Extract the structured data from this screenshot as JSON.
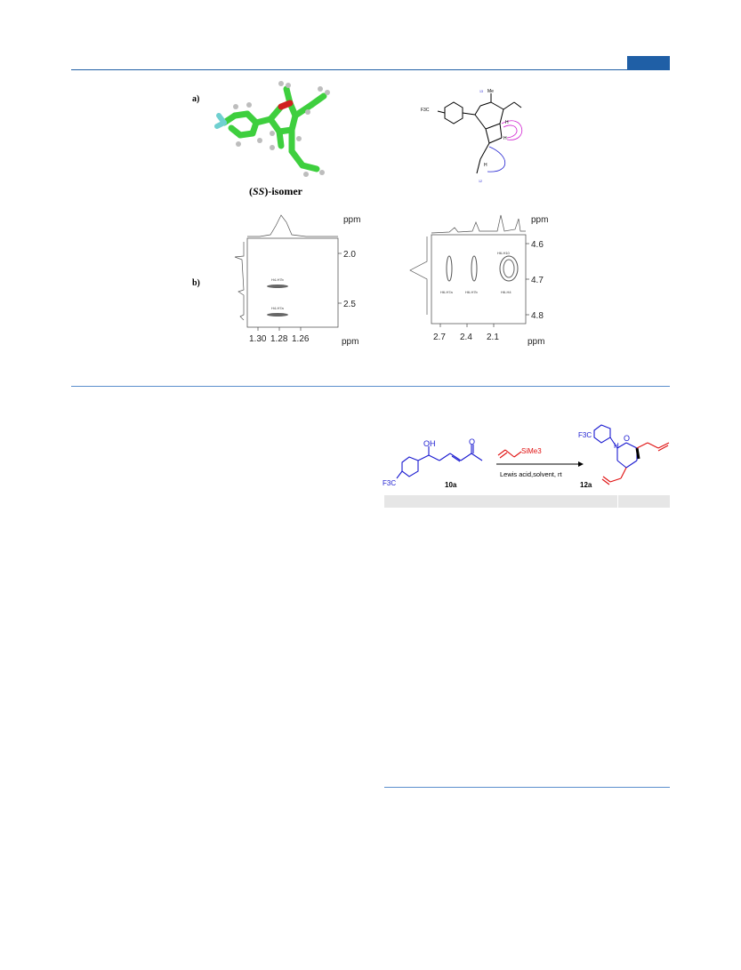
{
  "figure": {
    "panel_a_label": "a)",
    "panel_b_label": "b)",
    "isomer_caption_prefix": "(",
    "isomer_caption_italic": "SS",
    "isomer_caption_suffix": ")-isomer",
    "structure_labels": {
      "me": "Me",
      "cf3": "F3C",
      "n13": "13",
      "n14": "14",
      "n15": "15",
      "n1": "1",
      "n2": "2",
      "n3": "3",
      "n4": "4",
      "n5": "5",
      "n6": "6",
      "n7": "7",
      "n8": "8",
      "n9": "9",
      "n10": "10",
      "n11": "11",
      "n12": "12",
      "h": "H"
    },
    "noesy_left": {
      "y_unit": "ppm",
      "x_unit": "ppm",
      "y_ticks": [
        "2.0",
        "2.5"
      ],
      "x_ticks": [
        "1.30",
        "1.28",
        "1.26"
      ],
      "cross_peaks": [
        {
          "label": "H4-H7b",
          "x": 1.28,
          "y": 2.29
        },
        {
          "label": "H4-H7a",
          "x": 1.28,
          "y": 2.58
        }
      ]
    },
    "noesy_right": {
      "y_unit": "ppm",
      "x_unit": "ppm",
      "y_ticks": [
        "4.6",
        "4.7",
        "4.8"
      ],
      "x_ticks": [
        "2.7",
        "2.4",
        "2.1"
      ],
      "cross_peaks": [
        {
          "label": "H6-H7a",
          "x": 2.58
        },
        {
          "label": "H6-H7b",
          "x": 2.35
        },
        {
          "label": "H6-H4",
          "x": 2.05
        },
        {
          "label": "H6-H10",
          "x": 2.05
        }
      ]
    }
  },
  "scheme": {
    "reagent_label": "SiMe3",
    "conditions": "Lewis acid,solvent, rt",
    "start_compound": "10a",
    "product_compound": "12a",
    "oh": "OH",
    "o": "O",
    "h": "H",
    "f3c": "F3C"
  },
  "colors": {
    "rule_blue": "#1f5fa6",
    "structure_blue": "#1a1ad0",
    "structure_red": "#e01010",
    "model_green": "#3ecf3e"
  }
}
